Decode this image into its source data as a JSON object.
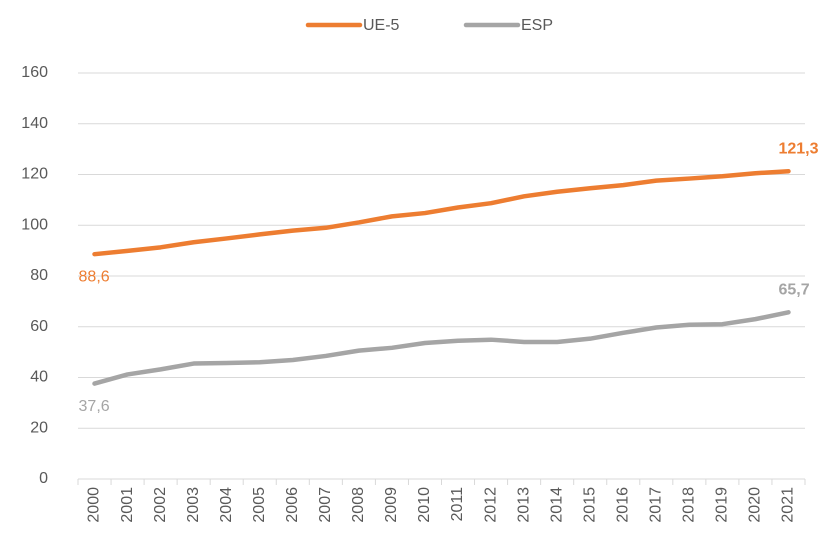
{
  "chart_data": {
    "type": "line",
    "categories": [
      "2000",
      "2001",
      "2002",
      "2003",
      "2004",
      "2005",
      "2006",
      "2007",
      "2008",
      "2009",
      "2010",
      "2011",
      "2012",
      "2013",
      "2014",
      "2015",
      "2016",
      "2017",
      "2018",
      "2019",
      "2020",
      "2021"
    ],
    "series": [
      {
        "name": "UE-5",
        "color": "#ed7d31",
        "values": [
          88.6,
          89.9,
          91.3,
          93.3,
          94.8,
          96.4,
          97.9,
          99.0,
          101.1,
          103.5,
          104.8,
          107.0,
          108.7,
          111.4,
          113.2,
          114.6,
          115.8,
          117.6,
          118.4,
          119.3,
          120.5,
          121.3
        ],
        "value_labels": [
          "88,6",
          null,
          null,
          null,
          null,
          null,
          null,
          null,
          null,
          null,
          null,
          null,
          null,
          null,
          null,
          null,
          null,
          null,
          null,
          null,
          null,
          "121,3"
        ]
      },
      {
        "name": "ESP",
        "color": "#a5a5a5",
        "values": [
          37.6,
          41.2,
          43.2,
          45.5,
          45.7,
          46.0,
          46.9,
          48.5,
          50.6,
          51.7,
          53.6,
          54.5,
          54.9,
          54.0,
          54.0,
          55.3,
          57.6,
          59.7,
          60.8,
          61.0,
          63.0,
          65.7
        ],
        "value_labels": [
          "37,6",
          null,
          null,
          null,
          null,
          null,
          null,
          null,
          null,
          null,
          null,
          null,
          null,
          null,
          null,
          null,
          null,
          null,
          null,
          null,
          null,
          "65,7"
        ]
      }
    ],
    "ylim": [
      0,
      160
    ],
    "yticks": [
      0,
      20,
      40,
      60,
      80,
      100,
      120,
      140,
      160
    ],
    "grid": true,
    "legend": "top"
  }
}
